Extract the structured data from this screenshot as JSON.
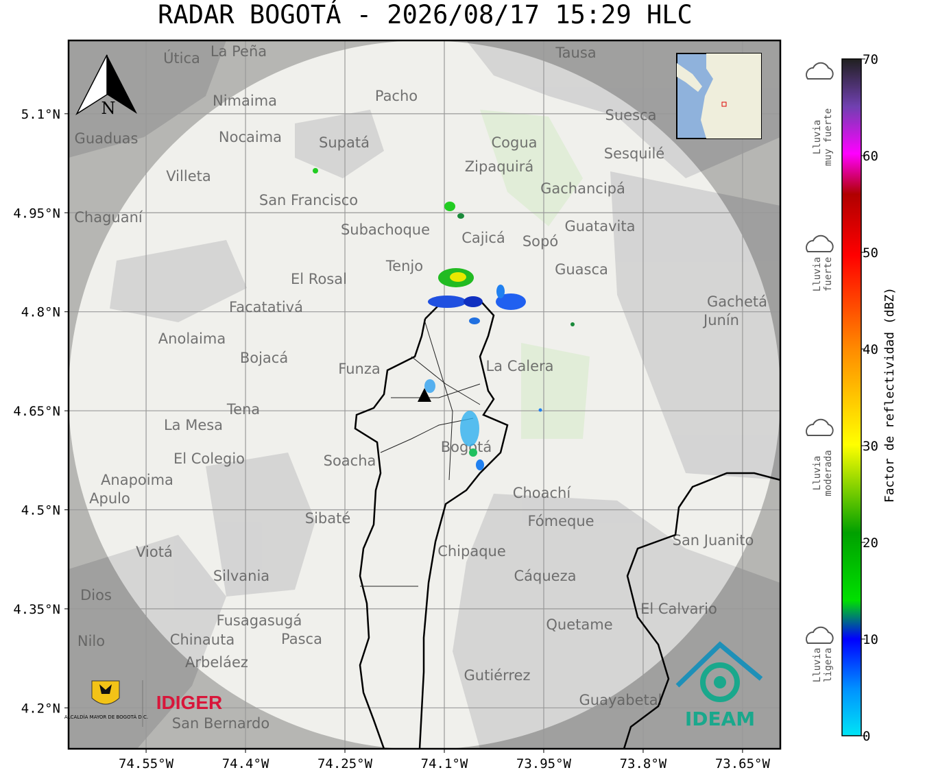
{
  "title": "RADAR BOGOTÁ - 2026/08/17 15:29 HLC",
  "map": {
    "xlim": [
      -74.667,
      -73.593
    ],
    "ylim": [
      4.138,
      5.211
    ],
    "xticks": [
      {
        "value": -74.55,
        "label": "74.55°W"
      },
      {
        "value": -74.4,
        "label": "74.4°W"
      },
      {
        "value": -74.25,
        "label": "74.25°W"
      },
      {
        "value": -74.1,
        "label": "74.1°W"
      },
      {
        "value": -73.95,
        "label": "73.95°W"
      },
      {
        "value": -73.8,
        "label": "73.8°W"
      },
      {
        "value": -73.65,
        "label": "73.65°W"
      }
    ],
    "yticks": [
      {
        "value": 5.1,
        "label": "5.1°N"
      },
      {
        "value": 4.95,
        "label": "4.95°N"
      },
      {
        "value": 4.8,
        "label": "4.8°N"
      },
      {
        "value": 4.65,
        "label": "4.65°N"
      },
      {
        "value": 4.5,
        "label": "4.5°N"
      },
      {
        "value": 4.35,
        "label": "4.35°N"
      },
      {
        "value": 4.2,
        "label": "4.2°N"
      }
    ],
    "north": "N",
    "places": [
      "La Peña",
      "Útica",
      "Tausa",
      "Pacho",
      "Nimaima",
      "Suesca",
      "Guaduas",
      "Nocaima",
      "Supatá",
      "Cogua",
      "Sesquilé",
      "Zipaquirá",
      "Villeta",
      "Gachancipá",
      "San Francisco",
      "Chaguaní",
      "Guatavita",
      "Subachoque",
      "Cajicá",
      "Sopó",
      "Tenjo",
      "Guasca",
      "El Rosal",
      "Facatativá",
      "Gachetá",
      "Junín",
      "Anolaima",
      "Bojacá",
      "Funza",
      "La Calera",
      "Tena",
      "La Mesa",
      "Soacha",
      "Bogotá",
      "El Colegio",
      "Anapoima",
      "Apulo",
      "Choachí",
      "Fómeque",
      "Sibaté",
      "San Juanito",
      "Viotá",
      "Chipaque",
      "Silvania",
      "Cáqueza",
      "El Calvario",
      "Fusagasugá",
      "Quetame",
      "Pasca",
      "Chinauta",
      "Nilo",
      "Arbeláez",
      "Gutiérrez",
      "Guayabetal",
      "San Bernardo",
      "Dios"
    ]
  },
  "logos": {
    "alcaldia": "ALCALDÍA MAYOR DE BOGOTÁ D.C.",
    "idiger": "IDIGER",
    "ideam": "IDEAM"
  },
  "colorbar": {
    "label": "Factor de reflectividad (dBZ)",
    "lim": [
      0,
      70
    ],
    "ticks": [
      0,
      10,
      20,
      30,
      40,
      50,
      60,
      70
    ],
    "categories": [
      [
        "Lluvia",
        "muy fuerte"
      ],
      [
        "Lluvia",
        "fuerte"
      ],
      [
        "Lluvia",
        "moderada"
      ],
      [
        "Lluvia",
        "ligera"
      ]
    ]
  }
}
